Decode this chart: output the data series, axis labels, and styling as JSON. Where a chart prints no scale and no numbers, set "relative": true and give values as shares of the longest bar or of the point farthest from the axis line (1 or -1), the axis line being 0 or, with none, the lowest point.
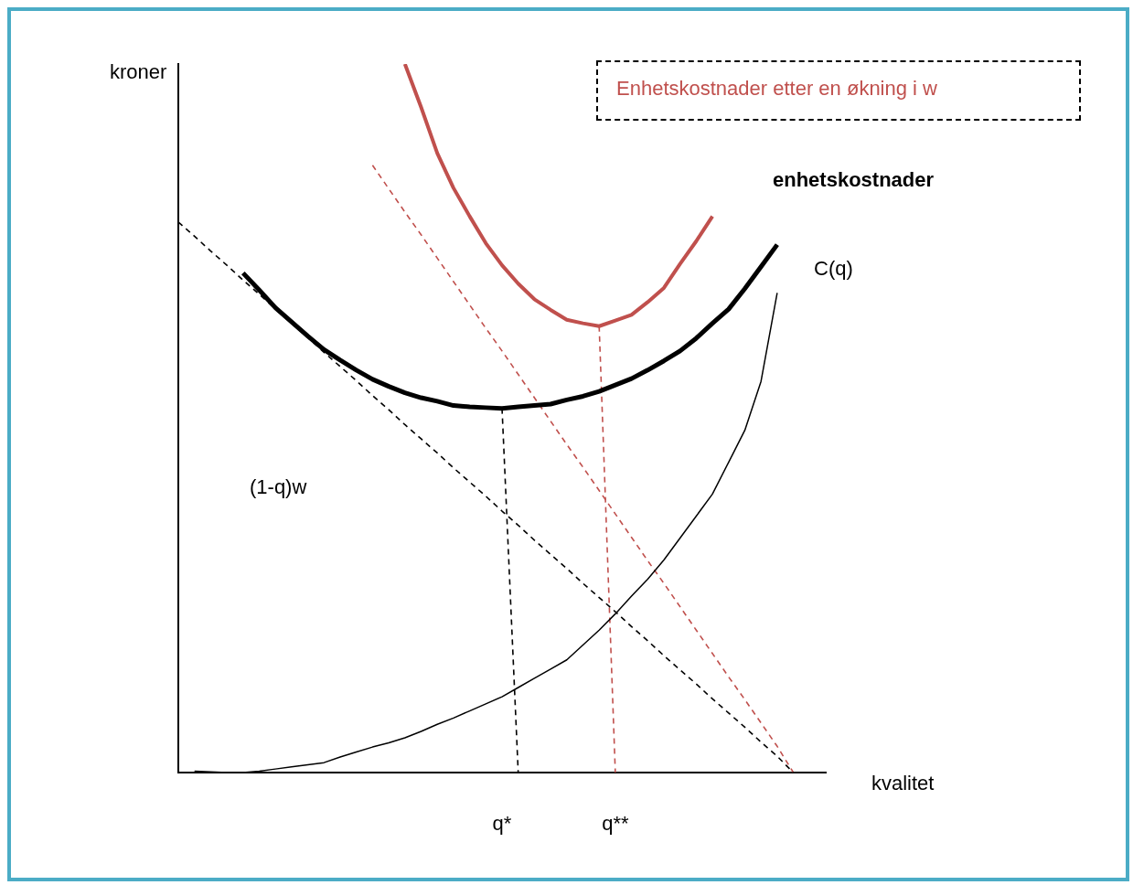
{
  "chart_data": {
    "type": "line",
    "relative": true,
    "xlabel": "kvalitet",
    "ylabel": "kroner",
    "grid": false,
    "legend": false,
    "marker": "none",
    "categories": [
      null,
      null,
      null,
      null,
      null,
      null,
      null,
      null,
      null,
      null,
      null,
      null,
      null,
      null,
      null,
      null,
      null,
      null,
      null,
      null,
      "q*",
      null,
      null,
      null,
      null,
      null,
      null,
      "q**",
      null,
      null,
      null,
      null,
      null,
      null,
      null,
      null,
      null,
      null,
      null,
      null,
      null
    ],
    "series": [
      {
        "color": "#000000",
        "line_style": "solid",
        "values": [
          null,
          null,
          null,
          null,
          0.705,
          0.681,
          0.656,
          0.636,
          0.616,
          0.597,
          0.582,
          0.568,
          0.555,
          0.545,
          0.536,
          0.529,
          0.524,
          0.518,
          0.516,
          0.515,
          0.514,
          0.516,
          0.518,
          0.52,
          0.526,
          0.531,
          0.538,
          0.547,
          0.556,
          0.568,
          0.581,
          0.595,
          0.613,
          0.634,
          0.654,
          0.683,
          0.714,
          0.745,
          null,
          null,
          null
        ]
      },
      {
        "color": "#c0504d",
        "line_style": "solid",
        "values": [
          null,
          null,
          null,
          null,
          null,
          null,
          null,
          null,
          null,
          null,
          null,
          null,
          null,
          null,
          1,
          0.939,
          0.874,
          0.825,
          0.785,
          0.747,
          0.716,
          0.69,
          0.668,
          0.653,
          0.639,
          0.634,
          0.63,
          0.638,
          0.646,
          0.664,
          0.684,
          0.718,
          0.75,
          0.785,
          null,
          null,
          null,
          null,
          null,
          null,
          null
        ]
      },
      {
        "color": "#000000",
        "line_style": "solid",
        "values": [
          null,
          0.002,
          0.001,
          0,
          0,
          0.002,
          0.005,
          0.008,
          0.011,
          0.014,
          0.022,
          0.029,
          0.036,
          0.042,
          0.049,
          0.058,
          0.068,
          0.077,
          0.087,
          0.097,
          0.107,
          0.12,
          0.133,
          0.146,
          0.159,
          0.18,
          0.201,
          0.224,
          0.249,
          0.273,
          0.3,
          0.331,
          0.362,
          0.393,
          0.438,
          0.483,
          0.552,
          0.677,
          null,
          null,
          null
        ]
      },
      {
        "color": "#000000",
        "line_style": "dashed",
        "values": [
          0.777,
          0.757,
          0.736,
          0.716,
          0.695,
          0.675,
          0.654,
          0.634,
          0.614,
          0.593,
          0.573,
          0.553,
          0.532,
          0.512,
          0.491,
          0.471,
          0.451,
          0.43,
          0.41,
          0.39,
          0.369,
          0.349,
          0.328,
          0.308,
          0.288,
          0.267,
          0.247,
          0.227,
          0.206,
          0.186,
          0.165,
          0.145,
          0.125,
          0.104,
          0.084,
          0.064,
          0.043,
          0.023,
          0,
          null,
          null
        ]
      },
      {
        "color": "#c0504d",
        "line_style": "dashed",
        "values": [
          null,
          null,
          null,
          null,
          null,
          null,
          null,
          null,
          null,
          null,
          null,
          null,
          0.857,
          0.824,
          0.791,
          0.759,
          0.726,
          0.693,
          0.66,
          0.627,
          0.595,
          0.562,
          0.529,
          0.496,
          0.463,
          0.431,
          0.398,
          0.365,
          0.332,
          0.299,
          0.267,
          0.234,
          0.201,
          0.168,
          0.135,
          0.103,
          0.07,
          0.037,
          0,
          null,
          null
        ]
      },
      {
        "color": "#000000",
        "line_style": "dashed",
        "values": [
          null,
          null,
          null,
          null,
          null,
          null,
          null,
          null,
          null,
          null,
          null,
          null,
          null,
          null,
          null,
          null,
          null,
          null,
          null,
          null,
          0.514,
          0,
          null,
          null,
          null,
          null,
          null,
          null,
          null,
          null,
          null,
          null,
          null,
          null,
          null,
          null,
          null,
          null,
          null,
          null,
          null
        ]
      },
      {
        "color": "#c0504d",
        "line_style": "dashed",
        "values": [
          null,
          null,
          null,
          null,
          null,
          null,
          null,
          null,
          null,
          null,
          null,
          null,
          null,
          null,
          null,
          null,
          null,
          null,
          null,
          null,
          null,
          null,
          null,
          null,
          null,
          null,
          0.63,
          0,
          null,
          null,
          null,
          null,
          null,
          null,
          null,
          null,
          null,
          null,
          null,
          null,
          null
        ]
      }
    ],
    "annotations": [
      "enhetskostnader",
      "C(q)",
      "(1-q)w",
      "Enhetskostnader etter en økning i w"
    ]
  }
}
